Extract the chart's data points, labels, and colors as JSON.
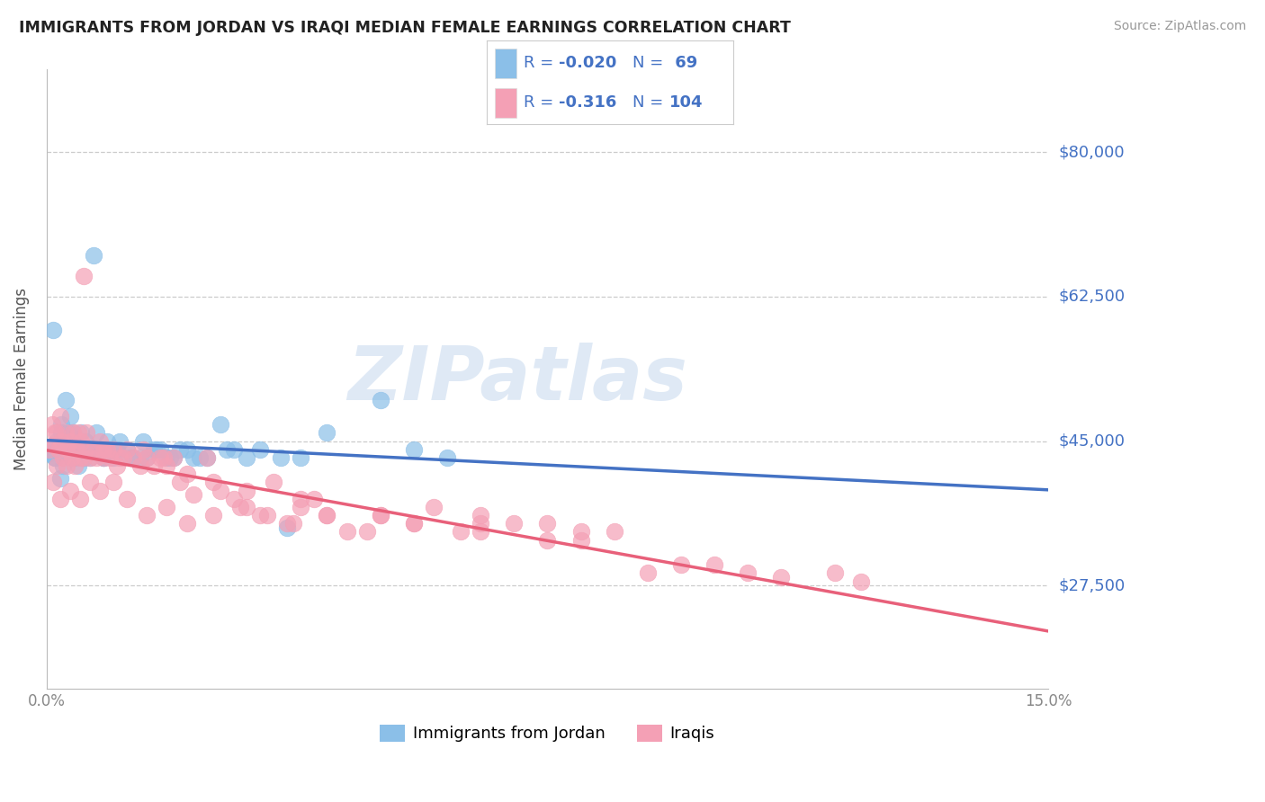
{
  "title": "IMMIGRANTS FROM JORDAN VS IRAQI MEDIAN FEMALE EARNINGS CORRELATION CHART",
  "source": "Source: ZipAtlas.com",
  "ylabel": "Median Female Earnings",
  "yticks": [
    27500,
    45000,
    62500,
    80000
  ],
  "ytick_labels": [
    "$27,500",
    "$45,000",
    "$62,500",
    "$80,000"
  ],
  "ylim": [
    15000,
    90000
  ],
  "xlim": [
    0.0,
    15.0
  ],
  "jordan_R": -0.02,
  "jordan_N": 69,
  "iraqi_R": -0.316,
  "iraqi_N": 104,
  "legend_labels": [
    "Immigrants from Jordan",
    "Iraqis"
  ],
  "jordan_color": "#8BBFE8",
  "iraqi_color": "#F4A0B5",
  "jordan_line_color": "#4472C4",
  "iraqi_line_color": "#E8607A",
  "legend_text_color": "#4472C4",
  "watermark": "ZIPatlas",
  "background_color": "#FFFFFF",
  "title_color": "#222222",
  "ytick_color": "#4472C4",
  "grid_color": "#CCCCCC",
  "jordan_line_y0": 44800,
  "jordan_line_y1": 44500,
  "iraqi_line_y0": 44500,
  "iraqi_line_y1": 27500,
  "jordan_scatter_x": [
    0.05,
    0.08,
    0.1,
    0.12,
    0.15,
    0.18,
    0.2,
    0.22,
    0.25,
    0.28,
    0.3,
    0.32,
    0.35,
    0.38,
    0.4,
    0.42,
    0.45,
    0.48,
    0.5,
    0.52,
    0.55,
    0.58,
    0.6,
    0.65,
    0.7,
    0.75,
    0.8,
    0.85,
    0.9,
    0.95,
    1.0,
    1.1,
    1.2,
    1.3,
    1.4,
    1.5,
    1.6,
    1.7,
    1.8,
    1.9,
    2.0,
    2.2,
    2.4,
    2.6,
    2.8,
    3.0,
    3.2,
    3.5,
    3.8,
    4.2,
    5.0,
    5.5,
    6.0,
    0.12,
    0.22,
    0.32,
    0.45,
    0.55,
    0.72,
    0.85,
    1.05,
    1.25,
    1.45,
    1.65,
    1.85,
    2.1,
    2.3,
    2.7,
    3.6
  ],
  "jordan_scatter_y": [
    43500,
    44000,
    58500,
    43000,
    45000,
    44000,
    40500,
    47000,
    42000,
    50000,
    44000,
    46000,
    48000,
    43000,
    46000,
    43000,
    45000,
    42000,
    44000,
    46000,
    43000,
    45000,
    44000,
    43000,
    67500,
    46000,
    44000,
    43000,
    45000,
    44000,
    43000,
    45000,
    44000,
    43000,
    43000,
    43000,
    44000,
    44000,
    43000,
    43000,
    44000,
    43000,
    43000,
    47000,
    44000,
    43000,
    44000,
    43000,
    43000,
    46000,
    50000,
    44000,
    43000,
    43000,
    46000,
    44000,
    45000,
    43000,
    44000,
    43000,
    44000,
    43000,
    45000,
    44000,
    43000,
    44000,
    43000,
    44000,
    34500
  ],
  "iraqi_scatter_x": [
    0.05,
    0.08,
    0.1,
    0.12,
    0.15,
    0.18,
    0.2,
    0.22,
    0.25,
    0.28,
    0.3,
    0.32,
    0.35,
    0.38,
    0.4,
    0.42,
    0.45,
    0.48,
    0.5,
    0.52,
    0.55,
    0.58,
    0.6,
    0.65,
    0.7,
    0.75,
    0.8,
    0.85,
    0.9,
    0.95,
    1.0,
    1.05,
    1.1,
    1.2,
    1.3,
    1.4,
    1.5,
    1.6,
    1.7,
    1.8,
    1.9,
    2.0,
    2.2,
    2.4,
    2.6,
    2.8,
    3.0,
    3.2,
    3.4,
    3.6,
    3.8,
    4.0,
    4.2,
    4.5,
    5.0,
    5.5,
    5.8,
    6.2,
    6.5,
    7.0,
    7.5,
    8.0,
    8.5,
    9.0,
    9.5,
    10.0,
    10.5,
    11.0,
    11.8,
    12.2,
    0.1,
    0.2,
    0.35,
    0.5,
    0.65,
    0.8,
    1.0,
    1.2,
    1.5,
    1.8,
    2.1,
    2.5,
    2.9,
    3.3,
    3.7,
    4.2,
    4.8,
    5.5,
    6.5,
    7.5,
    0.15,
    0.3,
    0.55,
    0.85,
    1.15,
    1.45,
    1.75,
    2.1,
    2.5,
    3.0,
    3.8,
    5.0,
    6.5,
    8.0
  ],
  "iraqi_scatter_y": [
    44000,
    47000,
    44500,
    46000,
    42000,
    44000,
    48000,
    45000,
    43000,
    46000,
    42000,
    44000,
    45000,
    43000,
    46000,
    42000,
    44000,
    46000,
    43000,
    45000,
    65000,
    44000,
    46000,
    43000,
    44000,
    43000,
    45000,
    43000,
    44000,
    43000,
    44000,
    42000,
    43000,
    44000,
    43000,
    42000,
    43000,
    42000,
    43000,
    42000,
    43000,
    40000,
    38500,
    43000,
    39000,
    38000,
    37000,
    36000,
    40000,
    35000,
    37000,
    38000,
    36000,
    34000,
    36000,
    35000,
    37000,
    34000,
    36000,
    35000,
    35000,
    33000,
    34000,
    29000,
    30000,
    30000,
    29000,
    28500,
    29000,
    28000,
    40000,
    38000,
    39000,
    38000,
    40000,
    39000,
    40000,
    38000,
    36000,
    37000,
    35000,
    36000,
    37000,
    36000,
    35000,
    36000,
    34000,
    35000,
    34000,
    33000,
    46000,
    44000,
    43000,
    44000,
    43000,
    44000,
    43000,
    41000,
    40000,
    39000,
    38000,
    36000,
    35000,
    34000
  ]
}
